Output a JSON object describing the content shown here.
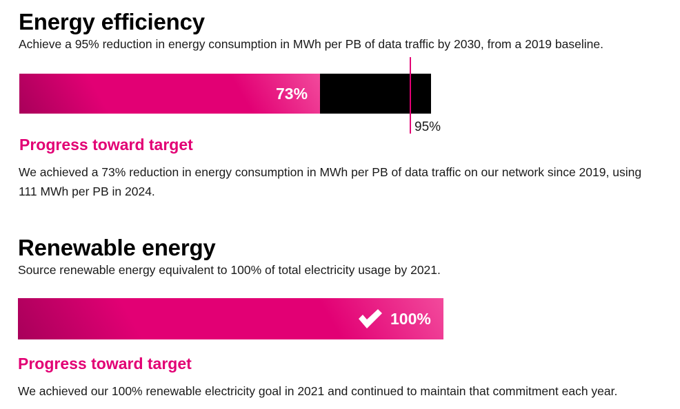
{
  "colors": {
    "magenta": "#e20074",
    "magenta_dark": "#a8005a",
    "magenta_light": "#f24a9c",
    "track": "#000000"
  },
  "energy_efficiency": {
    "title": "Energy efficiency",
    "subtitle": "Achieve a 95% reduction in energy consumption in MWh per PB of data traffic by 2030, from a 2019 baseline.",
    "progress_heading": "Progress toward target",
    "body": "We achieved a 73% reduction in energy consumption in MWh per PB of data traffic on our network since 2019, using 111 MWh per PB in 2024."
  },
  "renewable_energy": {
    "title": "Renewable energy",
    "subtitle": "Source renewable energy equivalent to 100% of total electricity usage by 2021.",
    "progress_heading": "Progress toward target",
    "body": "We achieved our 100% renewable electricity goal in 2021 and continued to maintain that commitment each year."
  },
  "chart_data": [
    {
      "type": "bar",
      "orientation": "horizontal",
      "title": "Energy efficiency",
      "value": 73,
      "value_label": "73%",
      "target": 95,
      "target_label": "95%",
      "xlim": [
        0,
        100
      ],
      "unit": "%"
    },
    {
      "type": "bar",
      "orientation": "horizontal",
      "title": "Renewable energy",
      "value": 100,
      "value_label": "100%",
      "xlim": [
        0,
        100
      ],
      "unit": "%",
      "completed": true
    }
  ]
}
